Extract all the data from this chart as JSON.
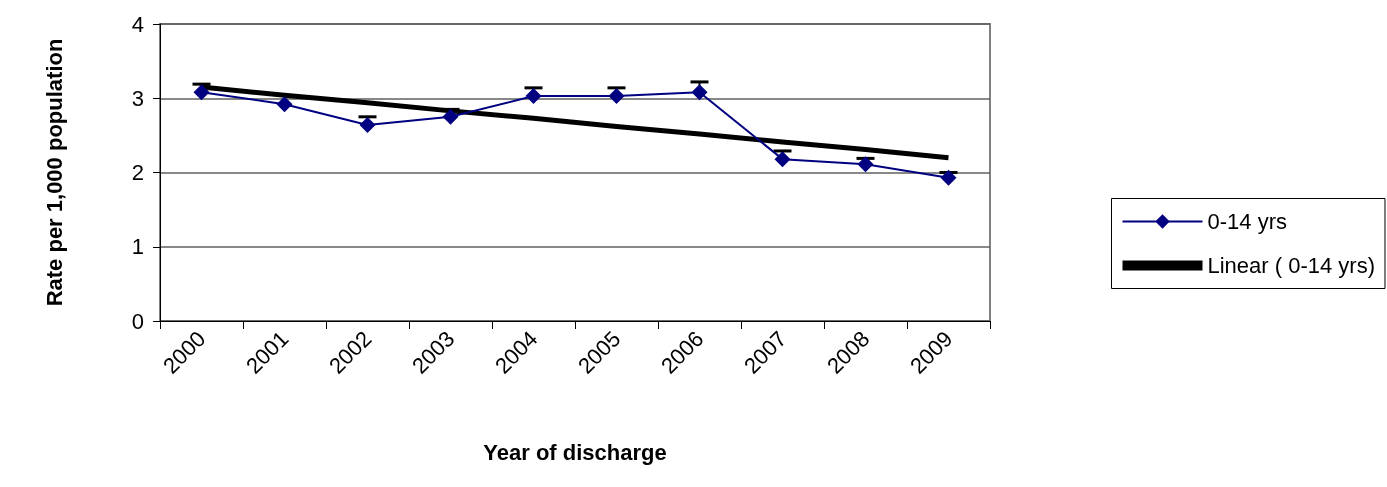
{
  "chart_data": {
    "type": "line",
    "xlabel": "Year of discharge",
    "ylabel": "Rate per 1,000 population",
    "categories": [
      "2000",
      "2001",
      "2002",
      "2003",
      "2004",
      "2005",
      "2006",
      "2007",
      "2008",
      "2009"
    ],
    "series": [
      {
        "name": "0-14 yrs",
        "color": "#000080",
        "marker": "diamond",
        "values": [
          3.08,
          2.92,
          2.64,
          2.75,
          3.03,
          3.03,
          3.08,
          2.18,
          2.11,
          1.93
        ],
        "errors": [
          [
            3.08,
            3.19
          ],
          null,
          [
            2.64,
            2.75
          ],
          [
            2.75,
            2.85
          ],
          [
            3.03,
            3.14
          ],
          [
            3.03,
            3.14
          ],
          [
            3.08,
            3.22
          ],
          [
            2.18,
            2.29
          ],
          [
            2.11,
            2.19
          ],
          [
            1.93,
            2.0
          ]
        ]
      },
      {
        "name": "Linear ( 0-14 yrs)",
        "color": "#000000",
        "marker": "none",
        "values": [
          3.15,
          3.04,
          2.94,
          2.83,
          2.73,
          2.62,
          2.52,
          2.41,
          2.31,
          2.2
        ]
      }
    ],
    "ylim": [
      0,
      4
    ],
    "yticks": [
      0,
      1,
      2,
      3,
      4
    ],
    "grid": "y",
    "legend": "right"
  }
}
